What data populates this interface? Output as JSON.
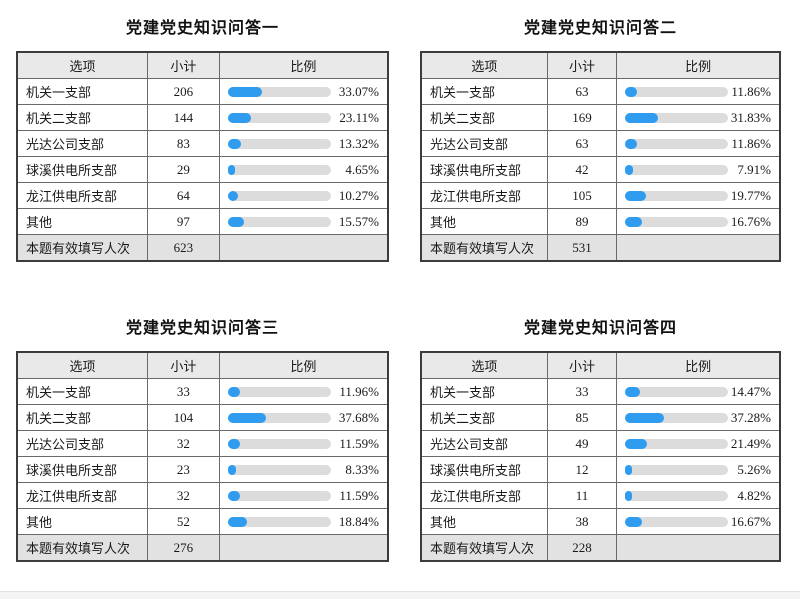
{
  "colors": {
    "bar_fill": "#2f9cf0",
    "bar_track": "#dcdcdc",
    "header_bg": "#e9e9e9",
    "total_row_bg": "#e2e2e2"
  },
  "chart_data": [
    {
      "type": "table",
      "title": "党建党史知识问答一",
      "columns": [
        "选项",
        "小计",
        "比例"
      ],
      "categories": [
        "机关一支部",
        "机关二支部",
        "光达公司支部",
        "球溪供电所支部",
        "龙江供电所支部",
        "其他"
      ],
      "counts": [
        206,
        144,
        83,
        29,
        64,
        97
      ],
      "percents": [
        "33.07%",
        "23.11%",
        "13.32%",
        "4.65%",
        "10.27%",
        "15.57%"
      ],
      "percent_values": [
        33.07,
        23.11,
        13.32,
        4.65,
        10.27,
        15.57
      ],
      "total_label": "本题有效填写人次",
      "total": 623,
      "bar_scale": [
        0,
        100
      ]
    },
    {
      "type": "table",
      "title": "党建党史知识问答二",
      "columns": [
        "选项",
        "小计",
        "比例"
      ],
      "categories": [
        "机关一支部",
        "机关二支部",
        "光达公司支部",
        "球溪供电所支部",
        "龙江供电所支部",
        "其他"
      ],
      "counts": [
        63,
        169,
        63,
        42,
        105,
        89
      ],
      "percents": [
        "11.86%",
        "31.83%",
        "11.86%",
        "7.91%",
        "19.77%",
        "16.76%"
      ],
      "percent_values": [
        11.86,
        31.83,
        11.86,
        7.91,
        19.77,
        16.76
      ],
      "total_label": "本题有效填写人次",
      "total": 531,
      "bar_scale": [
        0,
        100
      ]
    },
    {
      "type": "table",
      "title": "党建党史知识问答三",
      "columns": [
        "选项",
        "小计",
        "比例"
      ],
      "categories": [
        "机关一支部",
        "机关二支部",
        "光达公司支部",
        "球溪供电所支部",
        "龙江供电所支部",
        "其他"
      ],
      "counts": [
        33,
        104,
        32,
        23,
        32,
        52
      ],
      "percents": [
        "11.96%",
        "37.68%",
        "11.59%",
        "8.33%",
        "11.59%",
        "18.84%"
      ],
      "percent_values": [
        11.96,
        37.68,
        11.59,
        8.33,
        11.59,
        18.84
      ],
      "total_label": "本题有效填写人次",
      "total": 276,
      "bar_scale": [
        0,
        100
      ]
    },
    {
      "type": "table",
      "title": "党建党史知识问答四",
      "columns": [
        "选项",
        "小计",
        "比例"
      ],
      "categories": [
        "机关一支部",
        "机关二支部",
        "光达公司支部",
        "球溪供电所支部",
        "龙江供电所支部",
        "其他"
      ],
      "counts": [
        33,
        85,
        49,
        12,
        11,
        38
      ],
      "percents": [
        "14.47%",
        "37.28%",
        "21.49%",
        "5.26%",
        "4.82%",
        "16.67%"
      ],
      "percent_values": [
        14.47,
        37.28,
        21.49,
        5.26,
        4.82,
        16.67
      ],
      "total_label": "本题有效填写人次",
      "total": 228,
      "bar_scale": [
        0,
        100
      ]
    }
  ]
}
